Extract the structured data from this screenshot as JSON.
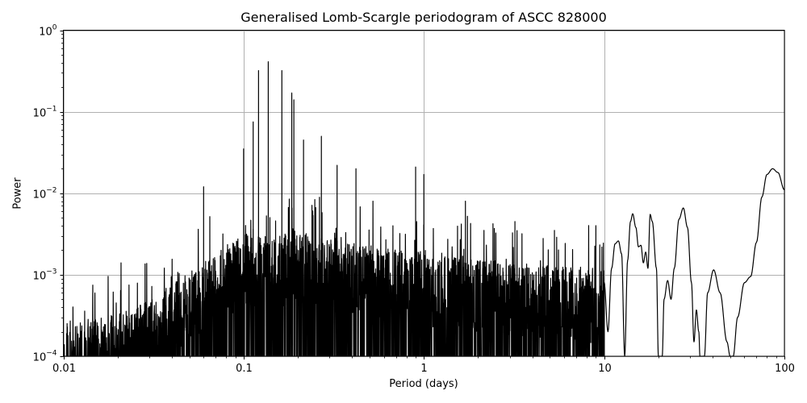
{
  "chart_data": {
    "type": "line",
    "title": "Generalised Lomb-Scargle periodogram of ASCC 828000",
    "xlabel": "Period (days)",
    "ylabel": "Power",
    "xscale": "log",
    "yscale": "log",
    "xlim": [
      0.01,
      100
    ],
    "ylim": [
      0.0001,
      1
    ],
    "grid": true,
    "legend": null,
    "x_ticks": [
      {
        "value": 0.01,
        "label": "0.01"
      },
      {
        "value": 0.1,
        "label": "0.1"
      },
      {
        "value": 1,
        "label": "1"
      },
      {
        "value": 10,
        "label": "10"
      },
      {
        "value": 100,
        "label": "100"
      }
    ],
    "y_ticks": [
      {
        "value": 0.0001,
        "base": "10",
        "exp": "−4"
      },
      {
        "value": 0.001,
        "base": "10",
        "exp": "−3"
      },
      {
        "value": 0.01,
        "base": "10",
        "exp": "−2"
      },
      {
        "value": 0.1,
        "base": "10",
        "exp": "−1"
      },
      {
        "value": 1,
        "base": "10",
        "exp": "0"
      }
    ],
    "line_color": "#000000",
    "grid_color": "#b0b0b0",
    "notable_peaks": [
      {
        "period": 0.06,
        "power": 0.012
      },
      {
        "period": 0.1,
        "power": 0.035
      },
      {
        "period": 0.113,
        "power": 0.075
      },
      {
        "period": 0.121,
        "power": 0.32
      },
      {
        "period": 0.137,
        "power": 0.41
      },
      {
        "period": 0.163,
        "power": 0.32
      },
      {
        "period": 0.185,
        "power": 0.17
      },
      {
        "period": 0.19,
        "power": 0.14
      },
      {
        "period": 0.215,
        "power": 0.045
      },
      {
        "period": 0.27,
        "power": 0.05
      },
      {
        "period": 0.33,
        "power": 0.022
      },
      {
        "period": 0.42,
        "power": 0.02
      },
      {
        "period": 0.9,
        "power": 0.021
      },
      {
        "period": 1.0,
        "power": 0.017
      },
      {
        "period": 1.7,
        "power": 0.008
      },
      {
        "period": 3.2,
        "power": 0.0045
      },
      {
        "period": 5.3,
        "power": 0.0035
      },
      {
        "period": 9.0,
        "power": 0.004
      },
      {
        "period": 12.0,
        "power": 0.0026
      },
      {
        "period": 14.3,
        "power": 0.0055
      },
      {
        "period": 18.0,
        "power": 0.0055
      },
      {
        "period": 22.5,
        "power": 0.0008
      },
      {
        "period": 27.5,
        "power": 0.0066
      },
      {
        "period": 32.0,
        "power": 0.00037
      },
      {
        "period": 40.5,
        "power": 0.0011
      },
      {
        "period": 63.0,
        "power": 0.0009
      },
      {
        "period": 86.0,
        "power": 0.02
      },
      {
        "period": 100.0,
        "power": 0.011
      }
    ],
    "long_period_curve": [
      [
        10.0,
        0.0008
      ],
      [
        10.5,
        0.0002
      ],
      [
        11.0,
        0.0012
      ],
      [
        11.5,
        0.0024
      ],
      [
        12.0,
        0.0026
      ],
      [
        12.5,
        0.0018
      ],
      [
        13.0,
        0.0001
      ],
      [
        13.5,
        0.0015
      ],
      [
        14.0,
        0.0045
      ],
      [
        14.4,
        0.0056
      ],
      [
        15.0,
        0.0038
      ],
      [
        15.5,
        0.0022
      ],
      [
        16.0,
        0.0023
      ],
      [
        16.5,
        0.0014
      ],
      [
        17.0,
        0.0019
      ],
      [
        17.5,
        0.0012
      ],
      [
        18.0,
        0.0055
      ],
      [
        18.5,
        0.0045
      ],
      [
        19.5,
        0.0012
      ],
      [
        20.0,
        0.0001
      ],
      [
        21.0,
        0.0001
      ],
      [
        21.5,
        0.0005
      ],
      [
        22.5,
        0.00085
      ],
      [
        23.5,
        0.0005
      ],
      [
        24.5,
        0.0012
      ],
      [
        26.0,
        0.0048
      ],
      [
        27.5,
        0.0066
      ],
      [
        29.0,
        0.0038
      ],
      [
        30.5,
        0.0008
      ],
      [
        31.5,
        0.00015
      ],
      [
        32.5,
        0.00037
      ],
      [
        33.5,
        0.0002
      ],
      [
        34.0,
        0.0001
      ],
      [
        36.0,
        0.0001
      ],
      [
        37.5,
        0.0006
      ],
      [
        40.5,
        0.00115
      ],
      [
        44.0,
        0.0006
      ],
      [
        48.0,
        0.00015
      ],
      [
        50.0,
        0.0001
      ],
      [
        52.0,
        0.0001
      ],
      [
        55.0,
        0.0003
      ],
      [
        60.0,
        0.0008
      ],
      [
        65.0,
        0.00095
      ],
      [
        70.0,
        0.0025
      ],
      [
        75.0,
        0.009
      ],
      [
        80.0,
        0.017
      ],
      [
        86.0,
        0.02
      ],
      [
        92.0,
        0.018
      ],
      [
        100.0,
        0.011
      ]
    ]
  }
}
